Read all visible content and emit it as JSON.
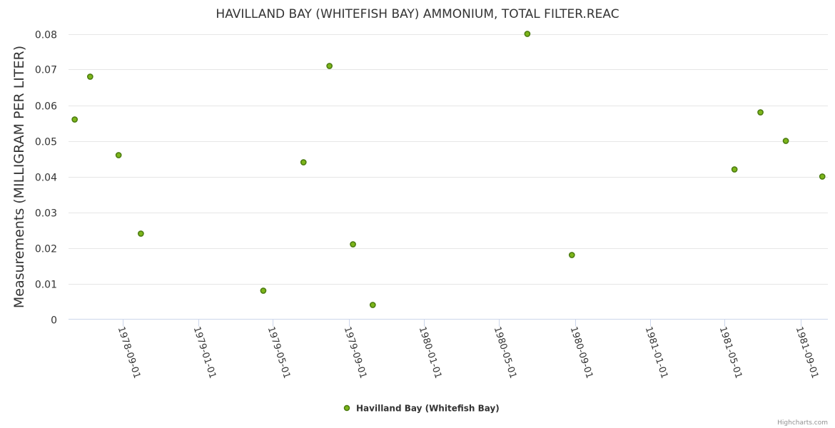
{
  "chart_data": {
    "type": "scatter",
    "title": "HAVILLAND BAY (WHITEFISH BAY) AMMONIUM, TOTAL FILTER.REAC",
    "xlabel": "",
    "ylabel": "Measurements (MILLIGRAM PER LITER)",
    "ylim": [
      0,
      0.08
    ],
    "yticks": [
      "0",
      "0.01",
      "0.02",
      "0.03",
      "0.04",
      "0.05",
      "0.06",
      "0.07",
      "0.08"
    ],
    "xlim": [
      "1978-06-05",
      "1981-10-15"
    ],
    "xticks": [
      "1978-09-01",
      "1979-01-01",
      "1979-05-01",
      "1979-09-01",
      "1980-01-01",
      "1980-05-01",
      "1980-09-01",
      "1981-01-01",
      "1981-05-01",
      "1981-09-01"
    ],
    "grid": true,
    "legend_position": "bottom-center",
    "series": [
      {
        "name": "Havilland Bay (Whitefish Bay)",
        "color": "#7cb51a",
        "border_color": "#4a7a10",
        "points": [
          {
            "x": "1978-06-15",
            "y": 0.056
          },
          {
            "x": "1978-07-10",
            "y": 0.068
          },
          {
            "x": "1978-08-25",
            "y": 0.046
          },
          {
            "x": "1978-09-30",
            "y": 0.024
          },
          {
            "x": "1979-04-16",
            "y": 0.008
          },
          {
            "x": "1979-06-20",
            "y": 0.044
          },
          {
            "x": "1979-08-01",
            "y": 0.071
          },
          {
            "x": "1979-09-08",
            "y": 0.021
          },
          {
            "x": "1979-10-10",
            "y": 0.004
          },
          {
            "x": "1980-06-16",
            "y": 0.08
          },
          {
            "x": "1980-08-27",
            "y": 0.018
          },
          {
            "x": "1981-05-17",
            "y": 0.042
          },
          {
            "x": "1981-06-28",
            "y": 0.058
          },
          {
            "x": "1981-08-08",
            "y": 0.05
          },
          {
            "x": "1981-10-06",
            "y": 0.04
          }
        ]
      }
    ]
  },
  "credits": "Highcharts.com"
}
